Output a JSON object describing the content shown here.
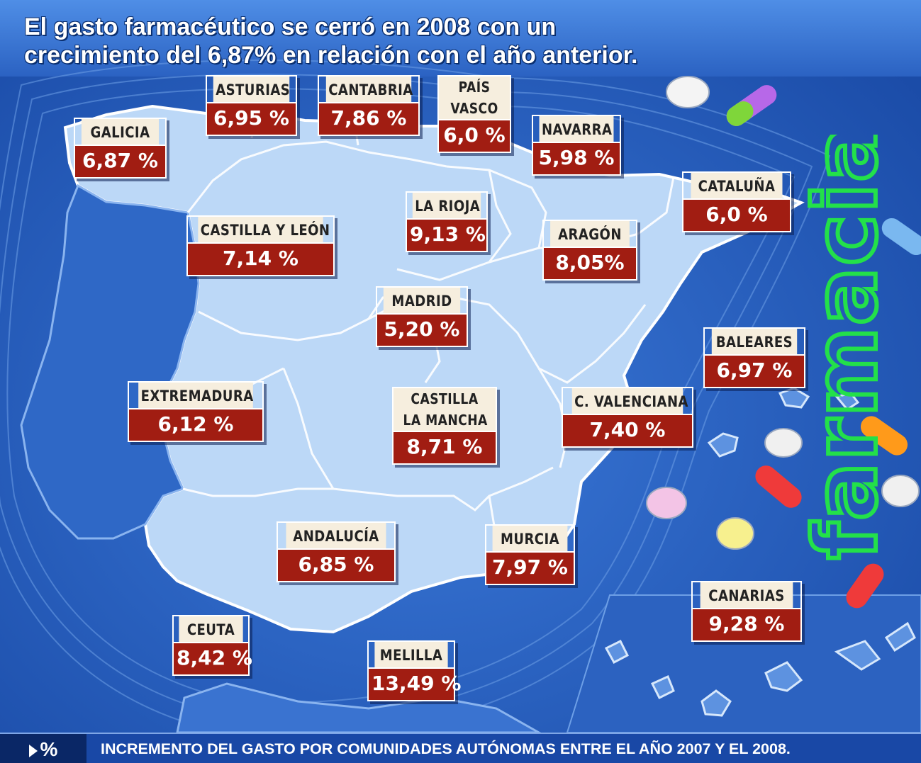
{
  "title": {
    "line1": "El gasto farmacéutico se cerró en 2008 con un",
    "line2": "crecimiento del 6,87% en relación con el año anterior."
  },
  "brand": {
    "word": "farmacia",
    "cross_icon": "pharmacy-cross-icon",
    "color": "#23e04a"
  },
  "colors": {
    "sea": "#1f56b8",
    "land": "#bcd8f7",
    "label_name_bg": "#f6eede",
    "label_value_bg": "#a11d12"
  },
  "regions": [
    {
      "name": "GALICIA",
      "value": "6,87 %"
    },
    {
      "name": "ASTURIAS",
      "value": "6,95 %"
    },
    {
      "name": "CANTABRIA",
      "value": "7,86 %"
    },
    {
      "name_line1": "PAÍS",
      "name_line2": "VASCO",
      "value": "6,0 %"
    },
    {
      "name": "NAVARRA",
      "value": "5,98 %"
    },
    {
      "name": "CATALUÑA",
      "value": "6,0 %"
    },
    {
      "name": "CASTILLA Y LEÓN",
      "value": "7,14 %"
    },
    {
      "name": "LA RIOJA",
      "value": "9,13 %"
    },
    {
      "name": "ARAGÓN",
      "value": "8,05%"
    },
    {
      "name": "MADRID",
      "value": "5,20 %"
    },
    {
      "name": "BALEARES",
      "value": "6,97 %"
    },
    {
      "name": "EXTREMADURA",
      "value": "6,12 %"
    },
    {
      "name_line1": "CASTILLA",
      "name_line2": "LA MANCHA",
      "value": "8,71 %"
    },
    {
      "name": "C. VALENCIANA",
      "value": "7,40 %"
    },
    {
      "name": "ANDALUCÍA",
      "value": "6,85 %"
    },
    {
      "name": "MURCIA",
      "value": "7,97 %"
    },
    {
      "name": "CANARIAS",
      "value": "9,28 %"
    },
    {
      "name": "CEUTA",
      "value": "8,42 %"
    },
    {
      "name": "MELILLA",
      "value": "13,49 %"
    }
  ],
  "footer": {
    "badge": "%",
    "text": "INCREMENTO DEL GASTO POR COMUNIDADES AUTÓNOMAS ENTRE EL AÑO 2007 Y EL 2008."
  }
}
